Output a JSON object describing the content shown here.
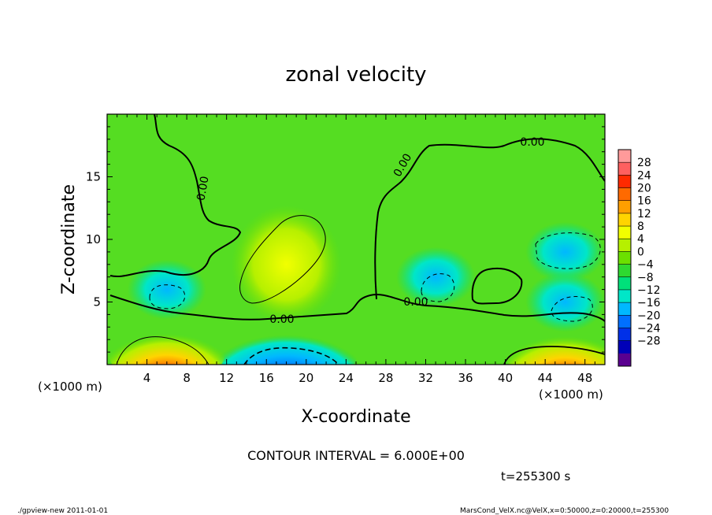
{
  "chart_data": {
    "type": "heatmap",
    "title": "zonal velocity",
    "xlabel": "X-coordinate",
    "ylabel": "Z-coordinate",
    "x_unit_label": "(×1000 m)",
    "z_unit_label": "(×1000 m)",
    "xlim": [
      0,
      50
    ],
    "ylim": [
      0,
      20
    ],
    "x_ticks": [
      4,
      8,
      12,
      16,
      20,
      24,
      28,
      32,
      36,
      40,
      44,
      48
    ],
    "y_ticks": [
      5,
      10,
      15
    ],
    "colorbar": {
      "labels": [
        28,
        24,
        20,
        16,
        12,
        8,
        4,
        0,
        -4,
        -8,
        -12,
        -16,
        -20,
        -24,
        -28
      ],
      "colors": [
        "#ff9a9a",
        "#ff6060",
        "#ff2a00",
        "#ff6a00",
        "#ff9f00",
        "#ffd400",
        "#f2ff00",
        "#b6f000",
        "#6be000",
        "#2ed930",
        "#00e07a",
        "#00e6c8",
        "#00b8ff",
        "#0070ff",
        "#0030e8",
        "#0000b8",
        "#5a0090"
      ]
    },
    "contour_labels": [
      "0.00",
      "0.00",
      "0.00",
      "0.00",
      "0.00"
    ],
    "contour_interval_text": "CONTOUR INTERVAL = 6.000E+00",
    "time_text": "t=255300 s",
    "footer_left": "./gpview-new   2011-01-01",
    "footer_right": "MarsCond_VelX.nc@VelX,x=0:50000,z=0:20000,t=255300",
    "features": [
      {
        "x": 18,
        "z": 1.0,
        "u": -12,
        "kind": "negative-core"
      },
      {
        "x": 46,
        "z": 1.0,
        "u": 22,
        "kind": "positive-core"
      },
      {
        "x": 6,
        "z": 1.2,
        "u": 12,
        "kind": "positive-core"
      },
      {
        "x": 18,
        "z": 8.0,
        "u": 7,
        "kind": "positive-lobe"
      },
      {
        "x": 6,
        "z": 6.0,
        "u": -8,
        "kind": "negative-lobe"
      },
      {
        "x": 33,
        "z": 7.0,
        "u": -7,
        "kind": "negative-lobe"
      },
      {
        "x": 46,
        "z": 9.0,
        "u": -8,
        "kind": "negative-lobe"
      },
      {
        "x": 46,
        "z": 5.0,
        "u": -6,
        "kind": "negative-lobe"
      }
    ]
  }
}
